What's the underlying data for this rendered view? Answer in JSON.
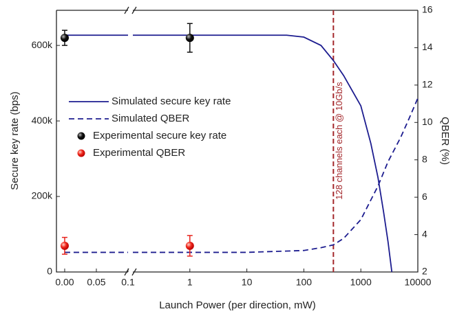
{
  "chart_data": {
    "type": "line",
    "xlabel": "Launch Power (per direction, mW)",
    "ylabel": "Secure key rate (bps)",
    "y2label": "QBER (%)",
    "x_break": 0.1,
    "xlim_linear": [
      -0.013,
      0.1
    ],
    "xlim_log": [
      0.1,
      10000
    ],
    "xscale_after_break": "log",
    "xticks": [
      {
        "value": 0,
        "label": "0.00"
      },
      0.05,
      0.1,
      1,
      10,
      100,
      1000,
      10000
    ],
    "ylim": [
      0,
      693000
    ],
    "yticks": [
      0,
      {
        "value": 200000,
        "label": "200k"
      },
      {
        "value": 400000,
        "label": "400k"
      },
      {
        "value": 600000,
        "label": "600k"
      }
    ],
    "y2lim": [
      2,
      16
    ],
    "y2ticks": [
      2,
      4,
      6,
      8,
      10,
      12,
      14,
      16
    ],
    "grid": false,
    "series": [
      {
        "name": "Simulated secure key rate",
        "color": "#1c1c8f",
        "style": "solid",
        "axis": "y",
        "x": [
          0,
          0.05,
          0.1,
          1,
          10,
          50,
          100,
          200,
          330,
          500,
          1000,
          1500,
          2000,
          2500,
          3000,
          3500
        ],
        "values": [
          627000,
          627000,
          627000,
          627000,
          627000,
          627000,
          622000,
          600000,
          560000,
          520000,
          440000,
          340000,
          250000,
          160000,
          80000,
          0
        ]
      },
      {
        "name": "Simulated QBER",
        "color": "#1c1c8f",
        "style": "dashed",
        "axis": "y2",
        "x": [
          0,
          0.05,
          0.1,
          1,
          10,
          100,
          200,
          330,
          500,
          1000,
          2000,
          3000,
          5000,
          7000,
          10000
        ],
        "values": [
          3.05,
          3.05,
          3.05,
          3.05,
          3.05,
          3.15,
          3.3,
          3.45,
          3.8,
          4.8,
          6.6,
          7.9,
          9.2,
          10.2,
          11.3
        ]
      },
      {
        "name": "Experimental secure key rate",
        "color": "#111111",
        "marker": "circle",
        "axis": "y",
        "x": [
          0,
          1
        ],
        "values": [
          620000,
          620000
        ],
        "errors": [
          20000,
          38000
        ]
      },
      {
        "name": "Experimental QBER",
        "color": "#e8231c",
        "marker": "circle",
        "axis": "y2",
        "x": [
          0,
          1
        ],
        "values": [
          3.4,
          3.4
        ],
        "errors": [
          0.45,
          0.55
        ]
      }
    ],
    "annotation": {
      "text": "128 channels each @ 10Gb/s",
      "x": 330,
      "color": "#a3262a"
    }
  }
}
